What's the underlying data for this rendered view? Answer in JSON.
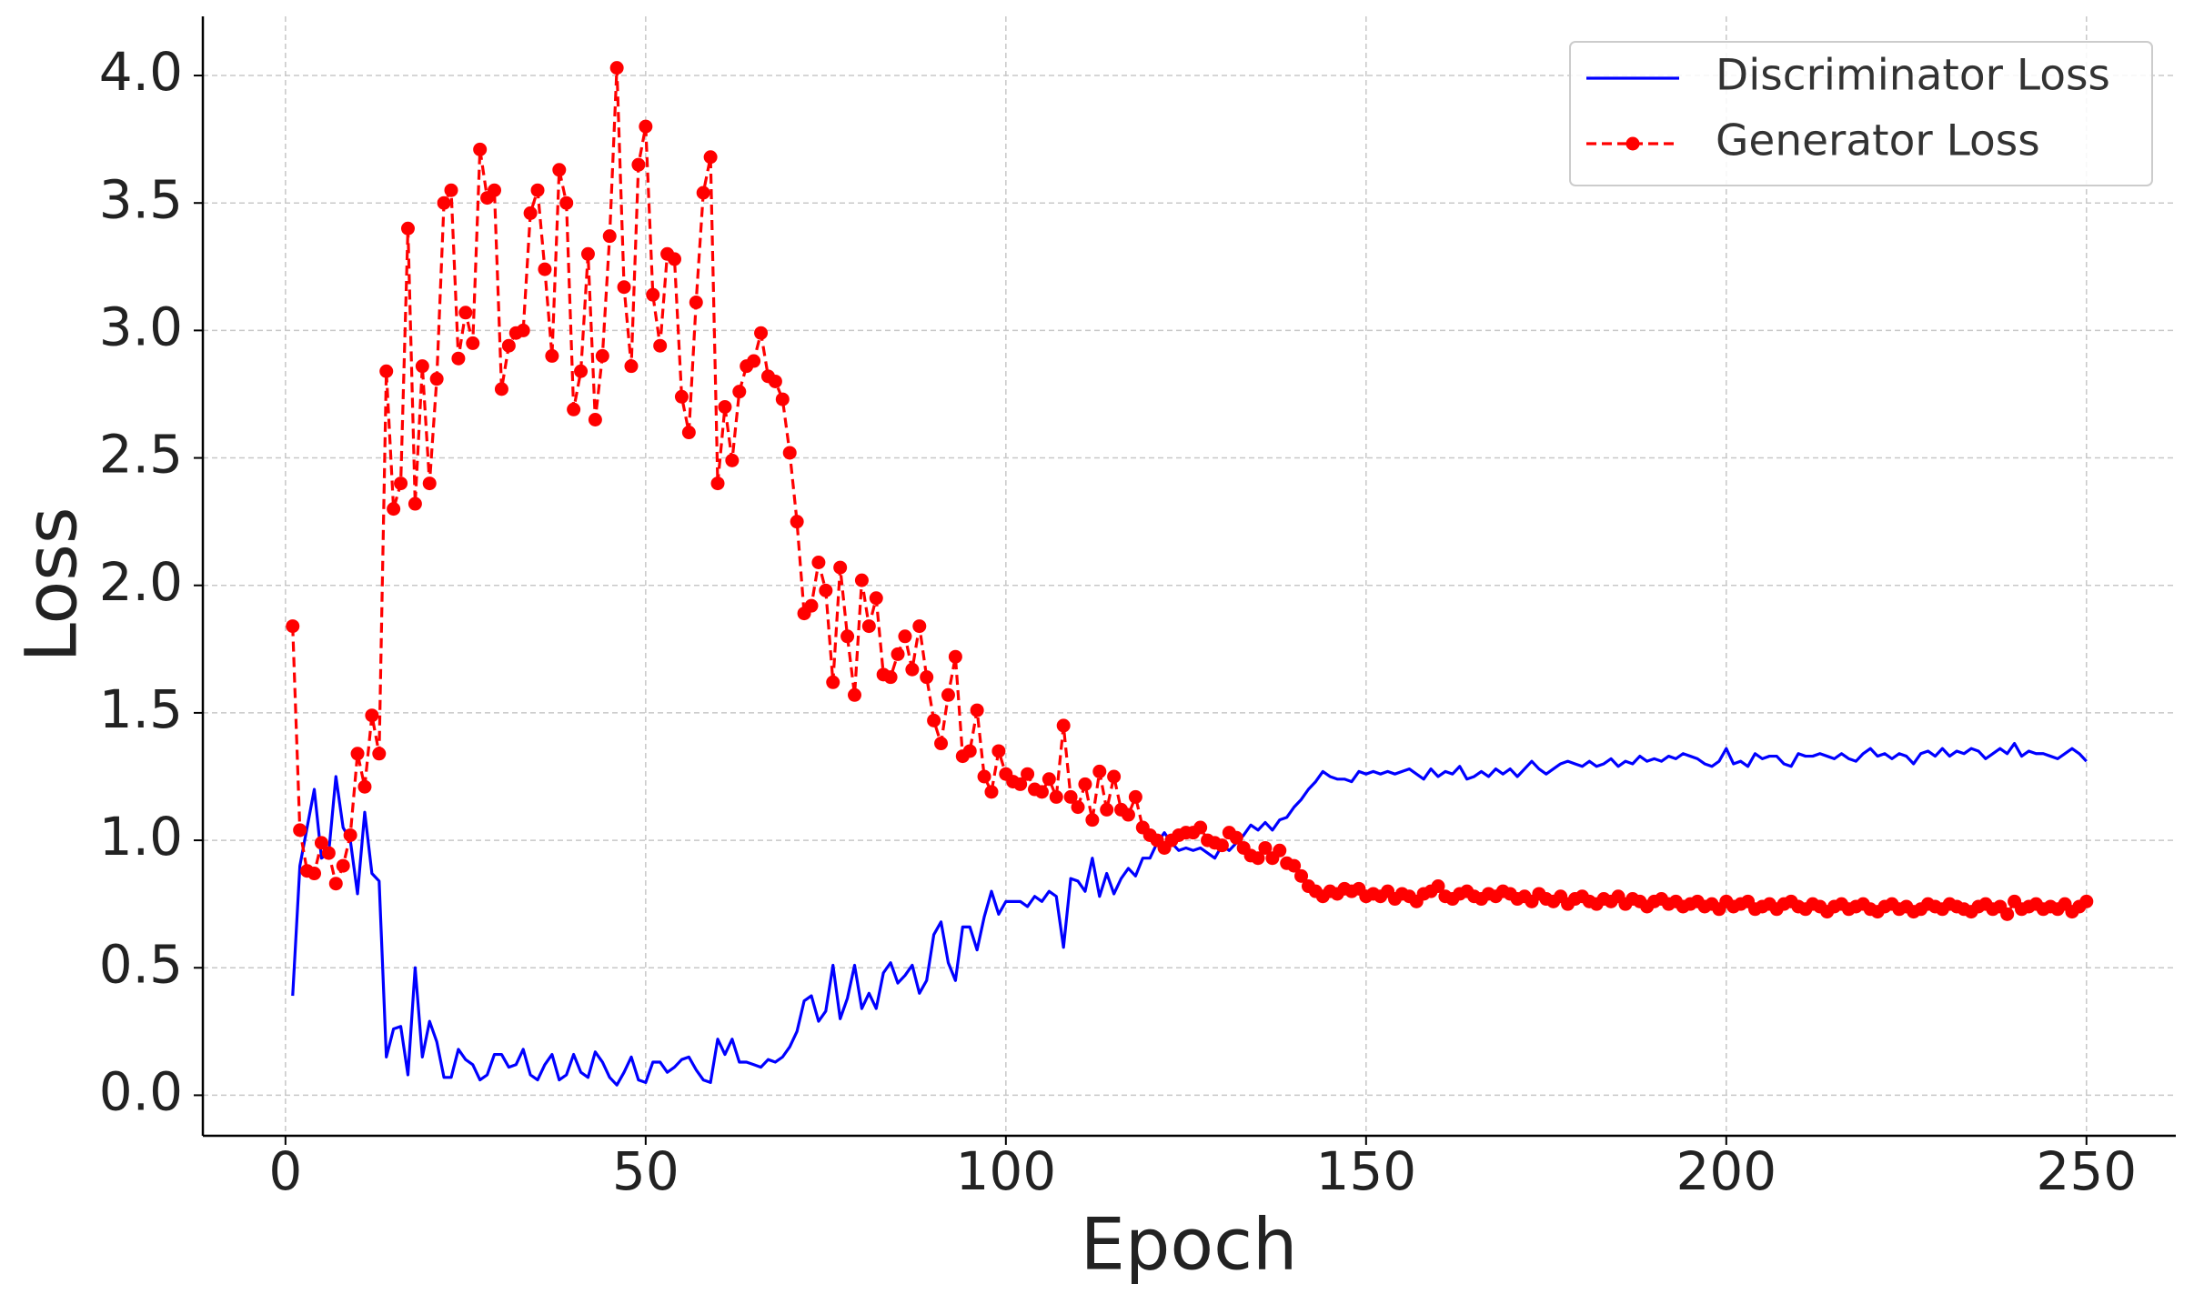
{
  "chart_data": {
    "type": "line",
    "xlabel": "Epoch",
    "ylabel": "Loss",
    "x": [
      1,
      2,
      3,
      4,
      5,
      6,
      7,
      8,
      9,
      10,
      11,
      12,
      13,
      14,
      15,
      16,
      17,
      18,
      19,
      20,
      21,
      22,
      23,
      24,
      25,
      26,
      27,
      28,
      29,
      30,
      31,
      32,
      33,
      34,
      35,
      36,
      37,
      38,
      39,
      40,
      41,
      42,
      43,
      44,
      45,
      46,
      47,
      48,
      49,
      50,
      51,
      52,
      53,
      54,
      55,
      56,
      57,
      58,
      59,
      60,
      61,
      62,
      63,
      64,
      65,
      66,
      67,
      68,
      69,
      70,
      71,
      72,
      73,
      74,
      75,
      76,
      77,
      78,
      79,
      80,
      81,
      82,
      83,
      84,
      85,
      86,
      87,
      88,
      89,
      90,
      91,
      92,
      93,
      94,
      95,
      96,
      97,
      98,
      99,
      100,
      101,
      102,
      103,
      104,
      105,
      106,
      107,
      108,
      109,
      110,
      111,
      112,
      113,
      114,
      115,
      116,
      117,
      118,
      119,
      120,
      121,
      122,
      123,
      124,
      125,
      126,
      127,
      128,
      129,
      130,
      131,
      132,
      133,
      134,
      135,
      136,
      137,
      138,
      139,
      140,
      141,
      142,
      143,
      144,
      145,
      146,
      147,
      148,
      149,
      150,
      151,
      152,
      153,
      154,
      155,
      156,
      157,
      158,
      159,
      160,
      161,
      162,
      163,
      164,
      165,
      166,
      167,
      168,
      169,
      170,
      171,
      172,
      173,
      174,
      175,
      176,
      177,
      178,
      179,
      180,
      181,
      182,
      183,
      184,
      185,
      186,
      187,
      188,
      189,
      190,
      191,
      192,
      193,
      194,
      195,
      196,
      197,
      198,
      199,
      200,
      201,
      202,
      203,
      204,
      205,
      206,
      207,
      208,
      209,
      210,
      211,
      212,
      213,
      214,
      215,
      216,
      217,
      218,
      219,
      220,
      221,
      222,
      223,
      224,
      225,
      226,
      227,
      228,
      229,
      230,
      231,
      232,
      233,
      234,
      235,
      236,
      237,
      238,
      239,
      240,
      241,
      242,
      243,
      244,
      245,
      246,
      247,
      248,
      249,
      250
    ],
    "series": [
      {
        "name": "Discriminator Loss",
        "color": "#0000ff",
        "line_style": "solid",
        "marker": false,
        "values": [
          0.39,
          0.9,
          1.05,
          1.2,
          0.93,
          0.95,
          1.25,
          1.05,
          1.0,
          0.79,
          1.11,
          0.87,
          0.84,
          0.15,
          0.26,
          0.27,
          0.08,
          0.5,
          0.15,
          0.29,
          0.21,
          0.07,
          0.07,
          0.18,
          0.14,
          0.12,
          0.06,
          0.08,
          0.16,
          0.16,
          0.11,
          0.12,
          0.18,
          0.08,
          0.06,
          0.12,
          0.16,
          0.06,
          0.08,
          0.16,
          0.09,
          0.07,
          0.17,
          0.13,
          0.07,
          0.04,
          0.09,
          0.15,
          0.06,
          0.05,
          0.13,
          0.13,
          0.09,
          0.11,
          0.14,
          0.15,
          0.1,
          0.06,
          0.05,
          0.22,
          0.16,
          0.22,
          0.13,
          0.13,
          0.12,
          0.11,
          0.14,
          0.13,
          0.15,
          0.19,
          0.25,
          0.37,
          0.39,
          0.29,
          0.33,
          0.51,
          0.3,
          0.38,
          0.51,
          0.34,
          0.4,
          0.34,
          0.48,
          0.52,
          0.44,
          0.47,
          0.51,
          0.4,
          0.45,
          0.63,
          0.68,
          0.52,
          0.45,
          0.66,
          0.66,
          0.57,
          0.7,
          0.8,
          0.71,
          0.76,
          0.76,
          0.76,
          0.74,
          0.78,
          0.76,
          0.8,
          0.78,
          0.58,
          0.85,
          0.84,
          0.8,
          0.93,
          0.78,
          0.87,
          0.79,
          0.85,
          0.89,
          0.86,
          0.93,
          0.93,
          0.99,
          1.03,
          0.99,
          0.96,
          0.97,
          0.96,
          0.97,
          0.95,
          0.93,
          0.98,
          0.96,
          0.99,
          1.02,
          1.06,
          1.04,
          1.07,
          1.04,
          1.08,
          1.09,
          1.13,
          1.16,
          1.2,
          1.23,
          1.27,
          1.25,
          1.24,
          1.24,
          1.23,
          1.27,
          1.26,
          1.27,
          1.26,
          1.27,
          1.26,
          1.27,
          1.28,
          1.26,
          1.24,
          1.28,
          1.25,
          1.27,
          1.26,
          1.29,
          1.24,
          1.25,
          1.27,
          1.25,
          1.28,
          1.26,
          1.28,
          1.25,
          1.28,
          1.31,
          1.28,
          1.26,
          1.28,
          1.3,
          1.31,
          1.3,
          1.29,
          1.31,
          1.29,
          1.3,
          1.32,
          1.29,
          1.31,
          1.3,
          1.33,
          1.31,
          1.32,
          1.31,
          1.33,
          1.32,
          1.34,
          1.33,
          1.32,
          1.3,
          1.29,
          1.31,
          1.36,
          1.3,
          1.31,
          1.29,
          1.34,
          1.32,
          1.33,
          1.33,
          1.3,
          1.29,
          1.34,
          1.33,
          1.33,
          1.34,
          1.33,
          1.32,
          1.34,
          1.32,
          1.31,
          1.34,
          1.36,
          1.33,
          1.34,
          1.32,
          1.34,
          1.33,
          1.3,
          1.34,
          1.35,
          1.33,
          1.36,
          1.33,
          1.35,
          1.34,
          1.36,
          1.35,
          1.32,
          1.34,
          1.36,
          1.34,
          1.38,
          1.33,
          1.35,
          1.34,
          1.34,
          1.33,
          1.32,
          1.34,
          1.36,
          1.34,
          1.31
        ]
      },
      {
        "name": "Generator Loss",
        "color": "#ff0000",
        "line_style": "dashed",
        "marker": true,
        "values": [
          1.84,
          1.04,
          0.88,
          0.87,
          0.99,
          0.95,
          0.83,
          0.9,
          1.02,
          1.34,
          1.21,
          1.49,
          1.34,
          2.84,
          2.3,
          2.4,
          3.4,
          2.32,
          2.86,
          2.4,
          2.81,
          3.5,
          3.55,
          2.89,
          3.07,
          2.95,
          3.71,
          3.52,
          3.55,
          2.77,
          2.94,
          2.99,
          3.0,
          3.46,
          3.55,
          3.24,
          2.9,
          3.63,
          3.5,
          2.69,
          2.84,
          3.3,
          2.65,
          2.9,
          3.37,
          4.03,
          3.17,
          2.86,
          3.65,
          3.8,
          3.14,
          2.94,
          3.3,
          3.28,
          2.74,
          2.6,
          3.11,
          3.54,
          3.68,
          2.4,
          2.7,
          2.49,
          2.76,
          2.86,
          2.88,
          2.99,
          2.82,
          2.8,
          2.73,
          2.52,
          2.25,
          1.89,
          1.92,
          2.09,
          1.98,
          1.62,
          2.07,
          1.8,
          1.57,
          2.02,
          1.84,
          1.95,
          1.65,
          1.64,
          1.73,
          1.8,
          1.67,
          1.84,
          1.64,
          1.47,
          1.38,
          1.57,
          1.72,
          1.33,
          1.35,
          1.51,
          1.25,
          1.19,
          1.35,
          1.26,
          1.23,
          1.22,
          1.26,
          1.2,
          1.19,
          1.24,
          1.17,
          1.45,
          1.17,
          1.13,
          1.22,
          1.08,
          1.27,
          1.12,
          1.25,
          1.12,
          1.1,
          1.17,
          1.05,
          1.02,
          1.0,
          0.97,
          1.0,
          1.02,
          1.03,
          1.03,
          1.05,
          1.0,
          0.99,
          0.98,
          1.03,
          1.01,
          0.97,
          0.94,
          0.93,
          0.97,
          0.93,
          0.96,
          0.91,
          0.9,
          0.86,
          0.82,
          0.8,
          0.78,
          0.8,
          0.79,
          0.81,
          0.8,
          0.81,
          0.78,
          0.79,
          0.78,
          0.8,
          0.77,
          0.79,
          0.78,
          0.76,
          0.79,
          0.8,
          0.82,
          0.78,
          0.77,
          0.79,
          0.8,
          0.78,
          0.77,
          0.79,
          0.78,
          0.8,
          0.79,
          0.77,
          0.78,
          0.76,
          0.79,
          0.77,
          0.76,
          0.78,
          0.75,
          0.77,
          0.78,
          0.76,
          0.75,
          0.77,
          0.76,
          0.78,
          0.75,
          0.77,
          0.76,
          0.74,
          0.76,
          0.77,
          0.75,
          0.76,
          0.74,
          0.75,
          0.76,
          0.74,
          0.75,
          0.73,
          0.76,
          0.74,
          0.75,
          0.76,
          0.73,
          0.74,
          0.75,
          0.73,
          0.75,
          0.76,
          0.74,
          0.73,
          0.75,
          0.74,
          0.72,
          0.74,
          0.75,
          0.73,
          0.74,
          0.75,
          0.73,
          0.72,
          0.74,
          0.75,
          0.73,
          0.74,
          0.72,
          0.73,
          0.75,
          0.74,
          0.73,
          0.75,
          0.74,
          0.73,
          0.72,
          0.74,
          0.75,
          0.73,
          0.74,
          0.71,
          0.76,
          0.73,
          0.74,
          0.75,
          0.73,
          0.74,
          0.73,
          0.75,
          0.72,
          0.74,
          0.76
        ]
      }
    ],
    "xlim": [
      -11.47,
      262.4
    ],
    "ylim": [
      -0.159,
      4.232
    ],
    "xticks": [
      0,
      50,
      100,
      150,
      200,
      250
    ],
    "yticks": [
      {
        "value": 0,
        "label": "0.0"
      },
      0.5,
      {
        "value": 1,
        "label": "1.0"
      },
      1.5,
      {
        "value": 2,
        "label": "2.0"
      },
      2.5,
      {
        "value": 3,
        "label": "3.0"
      },
      3.5,
      {
        "value": 4,
        "label": "4.0"
      }
    ],
    "grid": true,
    "legend": "upper right"
  }
}
